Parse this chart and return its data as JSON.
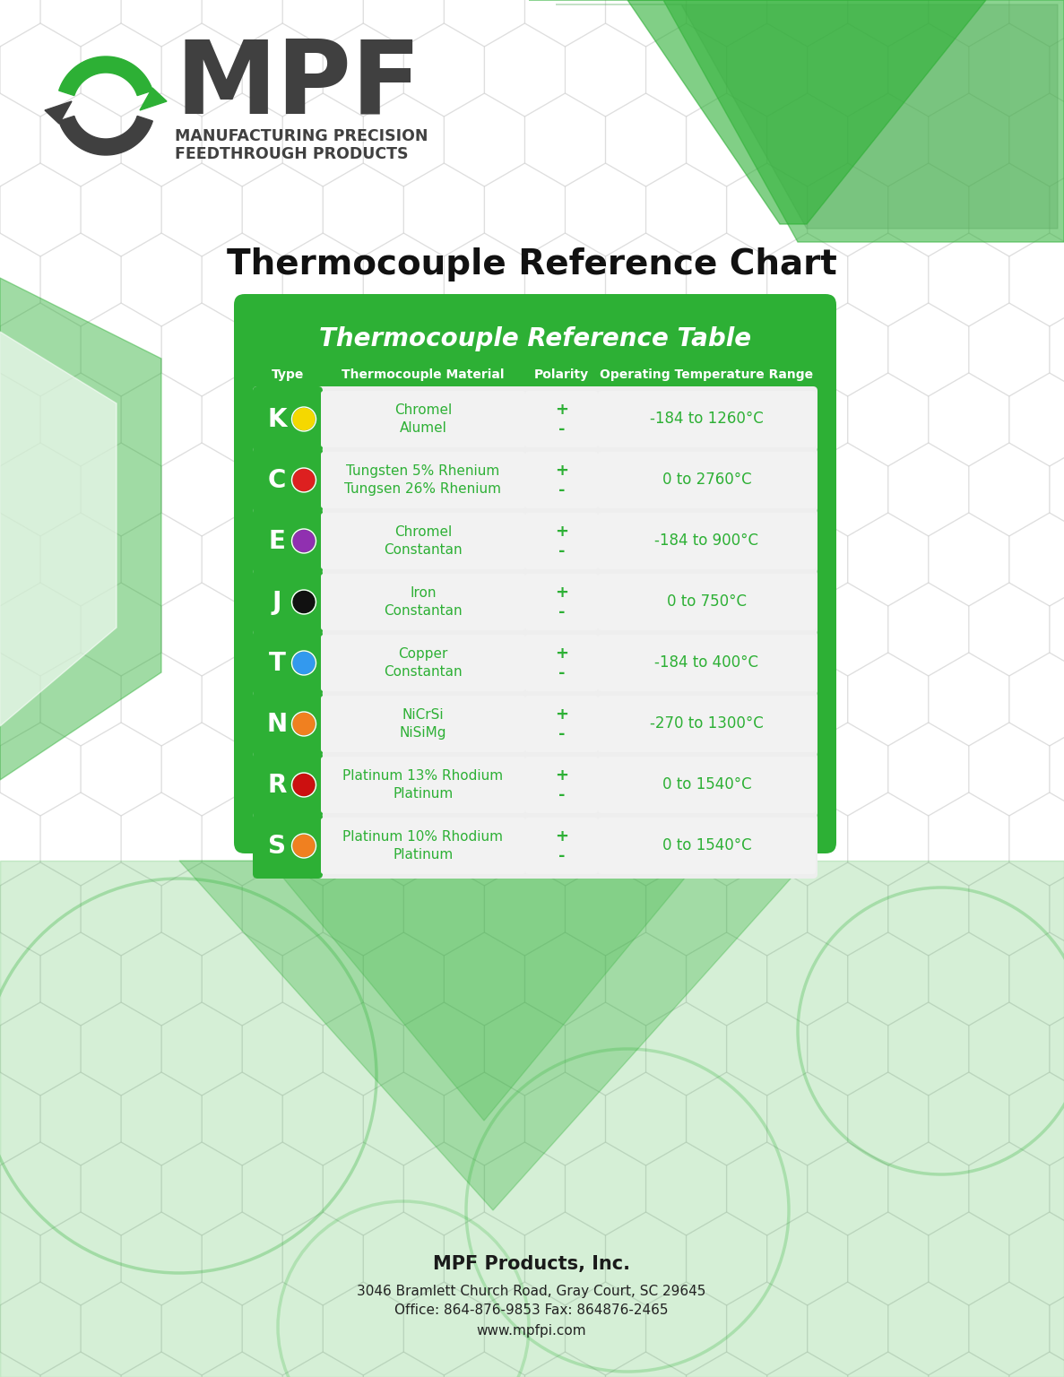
{
  "title": "Thermocouple Reference Chart",
  "table_title": "Thermocouple Reference Table",
  "col_headers": [
    "Type",
    "Thermocouple Material",
    "Polarity",
    "Operating Temperature Range"
  ],
  "rows": [
    {
      "type": "K",
      "dot_color": "#f5d800",
      "material_line1": "Chromel",
      "material_line2": "Alumel",
      "temp_range": "-184 to 1260°C"
    },
    {
      "type": "C",
      "dot_color": "#dd2020",
      "material_line1": "Tungsten 5% Rhenium",
      "material_line2": "Tungsen 26% Rhenium",
      "temp_range": "0 to 2760°C"
    },
    {
      "type": "E",
      "dot_color": "#9030b0",
      "material_line1": "Chromel",
      "material_line2": "Constantan",
      "temp_range": "-184 to 900°C"
    },
    {
      "type": "J",
      "dot_color": "#111111",
      "material_line1": "Iron",
      "material_line2": "Constantan",
      "temp_range": "0 to 750°C"
    },
    {
      "type": "T",
      "dot_color": "#3399ee",
      "material_line1": "Copper",
      "material_line2": "Constantan",
      "temp_range": "-184 to 400°C"
    },
    {
      "type": "N",
      "dot_color": "#f08020",
      "material_line1": "NiCrSi",
      "material_line2": "NiSiMg",
      "temp_range": "-270 to 1300°C"
    },
    {
      "type": "R",
      "dot_color": "#cc1010",
      "material_line1": "Platinum 13% Rhodium",
      "material_line2": "Platinum",
      "temp_range": "0 to 1540°C"
    },
    {
      "type": "S",
      "dot_color": "#f08020",
      "material_line1": "Platinum 10% Rhodium",
      "material_line2": "Platinum",
      "temp_range": "0 to 1540°C"
    }
  ],
  "footer_line1": "MPF Products, Inc.",
  "footer_line2": "3046 Bramlett Church Road, Gray Court, SC 29645",
  "footer_line3": "Office: 864-876-9853 Fax: 864876-2465",
  "footer_line4": "www.mpfpi.com",
  "green_color": "#2db035",
  "dark_gray": "#404040",
  "text_green": "#2db035",
  "hex_color": "#cccccc",
  "page_bg": "#ffffff"
}
